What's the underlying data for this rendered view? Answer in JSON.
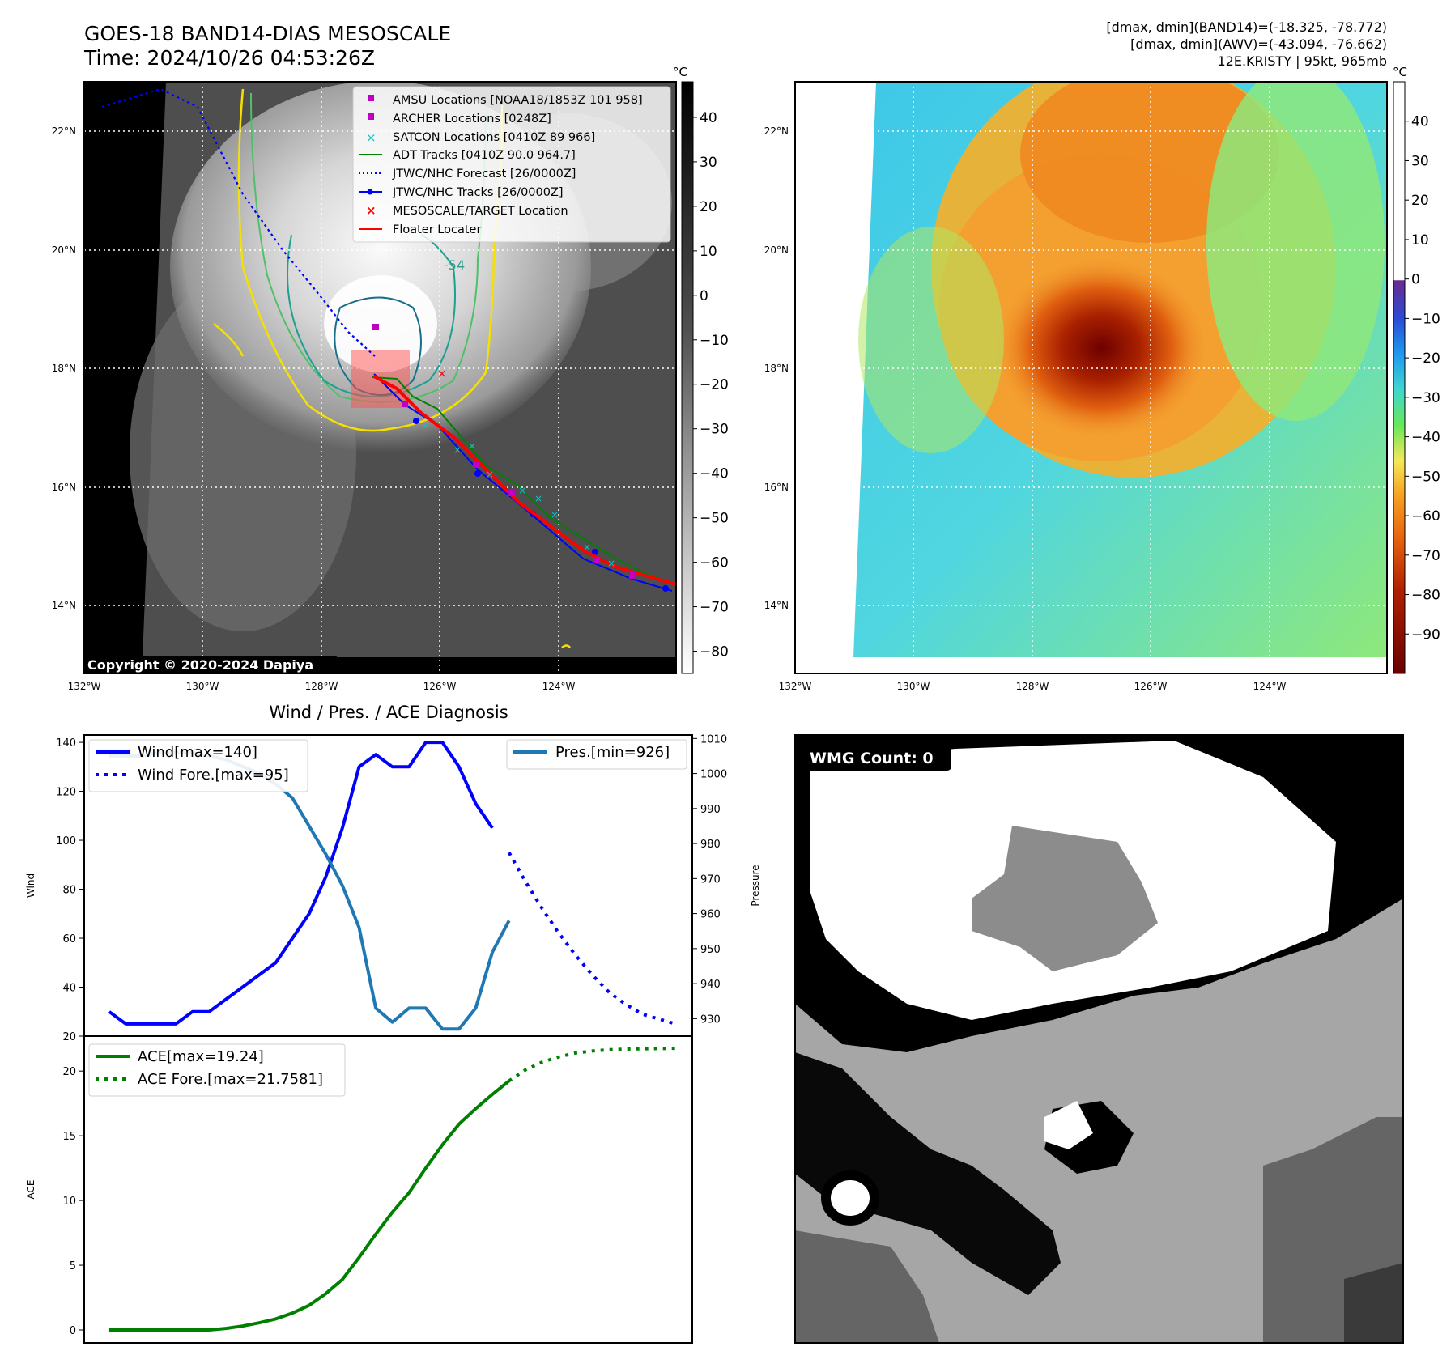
{
  "header": {
    "title": "GOES-18 BAND14-DIAS MESOSCALE",
    "time": "Time: 2024/10/26 04:53:26Z",
    "dmax_band14": "[dmax, dmin](BAND14)=(-18.325, -78.772)",
    "dmax_awv": "[dmax, dmin](AWV)=(-43.094, -76.662)",
    "storm": "12E.KRISTY | 95kt, 965mb"
  },
  "copyright": "Copyright © 2020-2024 Dapiya",
  "map": {
    "lon_ticks": [
      "132°W",
      "130°W",
      "128°W",
      "126°W",
      "124°W"
    ],
    "lat_ticks": [
      "22°N",
      "20°N",
      "18°N",
      "16°N",
      "14°N"
    ],
    "contour_label": "-54",
    "legend": [
      {
        "label": "AMSU Locations [NOAA18/1853Z 101 958]",
        "marker": "square",
        "color": "#c000c0"
      },
      {
        "label": "ARCHER Locations [0248Z]",
        "marker": "square",
        "color": "#c000c0"
      },
      {
        "label": "SATCON Locations [0410Z 89 966]",
        "marker": "x",
        "color": "#19c0c0"
      },
      {
        "label": "ADT Tracks [0410Z 90.0 964.7]",
        "marker": "line",
        "color": "#008000"
      },
      {
        "label": "JTWC/NHC Forecast [26/0000Z]",
        "marker": "dotted",
        "color": "#0000ff"
      },
      {
        "label": "JTWC/NHC Tracks [26/0000Z]",
        "marker": "line-dot",
        "color": "#0000ff"
      },
      {
        "label": "MESOSCALE/TARGET Location",
        "marker": "x",
        "color": "#ff0000"
      },
      {
        "label": "Floater Locater",
        "marker": "line",
        "color": "#ff0000"
      }
    ]
  },
  "colorbar_gray": {
    "unit": "°C",
    "ticks": [
      "40",
      "30",
      "20",
      "10",
      "0",
      "−10",
      "−20",
      "−30",
      "−40",
      "−50",
      "−60",
      "−70",
      "−80"
    ]
  },
  "colorbar_color": {
    "unit": "°C",
    "ticks": [
      "40",
      "30",
      "20",
      "10",
      "0",
      "−10",
      "−20",
      "−30",
      "−40",
      "−50",
      "−60",
      "−70",
      "−80",
      "−90"
    ]
  },
  "chart_data": [
    {
      "type": "line",
      "title": "Wind / Pres. / ACE Diagnosis",
      "ylabel": "Wind",
      "ylabel_right": "Pressure",
      "ylim": [
        20,
        143
      ],
      "ylim_right": [
        925,
        1011
      ],
      "y_ticks": [
        "140",
        "120",
        "100",
        "80",
        "60",
        "40",
        "20"
      ],
      "y_ticks_right": [
        "1010",
        "1000",
        "990",
        "980",
        "970",
        "960",
        "950",
        "940",
        "930"
      ],
      "xlim": [
        -1.5,
        35
      ],
      "series": [
        {
          "name": "Wind[max=140]",
          "color": "#0000ff",
          "style": "solid",
          "x": [
            0,
            1,
            2,
            3,
            4,
            5,
            6,
            7,
            8,
            9,
            10,
            11,
            12,
            13,
            14,
            15,
            16,
            17,
            18,
            19,
            20,
            21,
            22,
            23
          ],
          "values": [
            30,
            25,
            25,
            25,
            25,
            30,
            30,
            35,
            40,
            45,
            50,
            60,
            70,
            85,
            105,
            130,
            135,
            130,
            130,
            140,
            140,
            130,
            115,
            105
          ]
        },
        {
          "name": "Wind Fore.[max=95]",
          "color": "#0000ff",
          "style": "dotted",
          "x": [
            24,
            25,
            26,
            27,
            28,
            29,
            30,
            31,
            32,
            33,
            34
          ],
          "values": [
            95,
            83,
            72,
            62,
            53,
            45,
            38,
            33,
            29,
            27,
            25
          ]
        },
        {
          "name": "Pres.[min=926]",
          "color": "#1f77b4",
          "style": "solid",
          "axis": "right",
          "x": [
            0,
            1,
            2,
            3,
            4,
            5,
            6,
            7,
            8,
            9,
            10,
            11,
            12,
            13,
            14,
            15,
            16,
            17,
            18,
            19,
            20,
            21,
            22,
            23
          ],
          "values": [
            1005,
            1005,
            1005,
            1006,
            1006,
            1006,
            1005,
            1004,
            1002,
            1000,
            997,
            993,
            985,
            977,
            968,
            956,
            933,
            929,
            933,
            933,
            927,
            927,
            933,
            949
          ]
        },
        {
          "name": "Pres.[min=926] (recent)",
          "color": "#1f77b4",
          "style": "solid",
          "axis": "right",
          "x": [
            23,
            24
          ],
          "values": [
            949,
            958
          ]
        }
      ]
    },
    {
      "type": "line",
      "ylabel": "ACE",
      "ylim": [
        -1,
        22.7
      ],
      "y_ticks": [
        "20",
        "15",
        "10",
        "5",
        "0"
      ],
      "xlim": [
        -1.5,
        35
      ],
      "series": [
        {
          "name": "ACE[max=19.24]",
          "color": "#008000",
          "style": "solid",
          "x": [
            0,
            1,
            2,
            3,
            4,
            5,
            6,
            7,
            8,
            9,
            10,
            11,
            12,
            13,
            14,
            15,
            16,
            17,
            18,
            19,
            20,
            21,
            22,
            23,
            24
          ],
          "values": [
            0,
            0,
            0,
            0,
            0,
            0,
            0,
            0.12,
            0.3,
            0.55,
            0.85,
            1.3,
            1.9,
            2.8,
            3.9,
            5.6,
            7.4,
            9.1,
            10.6,
            12.5,
            14.3,
            15.9,
            17.1,
            18.2,
            19.24
          ]
        },
        {
          "name": "ACE Fore.[max=21.7581]",
          "color": "#008000",
          "style": "dotted",
          "x": [
            24,
            25,
            26,
            27,
            28,
            29,
            30,
            31,
            32,
            33,
            34
          ],
          "values": [
            19.24,
            20.1,
            20.7,
            21.1,
            21.4,
            21.55,
            21.65,
            21.7,
            21.72,
            21.74,
            21.7581
          ]
        }
      ]
    }
  ],
  "wmg": {
    "label": "WMG Count: 0"
  }
}
